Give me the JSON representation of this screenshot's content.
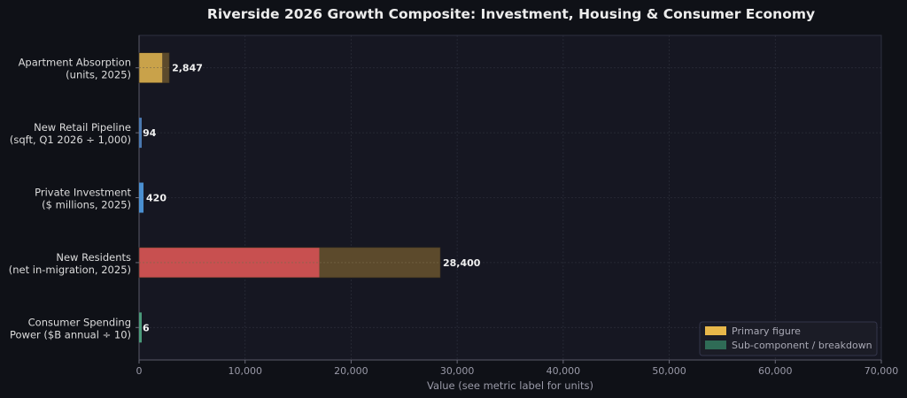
{
  "chart_data": {
    "type": "bar",
    "orientation": "horizontal",
    "title": "Riverside 2026 Growth Composite: Investment, Housing & Consumer Economy",
    "xlabel": "Value (see metric label for units)",
    "ylabel": "",
    "xlim": [
      0,
      70000
    ],
    "x_ticks": [
      0,
      10000,
      20000,
      30000,
      40000,
      50000,
      60000,
      70000
    ],
    "x_tick_labels": [
      "0",
      "10,000",
      "20,000",
      "30,000",
      "40,000",
      "50,000",
      "60,000",
      "70,000"
    ],
    "grid": true,
    "legend_position": "bottom-right",
    "legend": [
      {
        "name": "Primary figure",
        "color": "#e8b84a"
      },
      {
        "name": "Sub-component / breakdown",
        "color": "#2f6b56"
      }
    ],
    "categories": [
      {
        "line1": "Apartment Absorption",
        "line2": "(units, 2025)"
      },
      {
        "line1": "New Retail Pipeline",
        "line2": "(sqft, Q1 2026 ÷ 1,000)"
      },
      {
        "line1": "Private Investment",
        "line2": "($ millions, 2025)"
      },
      {
        "line1": "New Residents",
        "line2": "(net in-migration, 2025)"
      },
      {
        "line1": "Consumer Spending",
        "line2": "Power ($B annual ÷ 10)"
      }
    ],
    "bars": [
      {
        "value": 2847,
        "value_label": "2,847",
        "primary_color": "#c9a24a",
        "sub_value": 2200
      },
      {
        "value": 94,
        "value_label": "94",
        "primary_color": "#4a78b0",
        "sub_value": null
      },
      {
        "value": 420,
        "value_label": "420",
        "primary_color": "#4a8fd0",
        "sub_value": null
      },
      {
        "value": 28400,
        "value_label": "28,400",
        "primary_color": "#c85050",
        "sub_value": 17000
      },
      {
        "value": 6,
        "value_label": "6",
        "primary_color": "#4a9a7a",
        "sub_value": null
      }
    ]
  }
}
